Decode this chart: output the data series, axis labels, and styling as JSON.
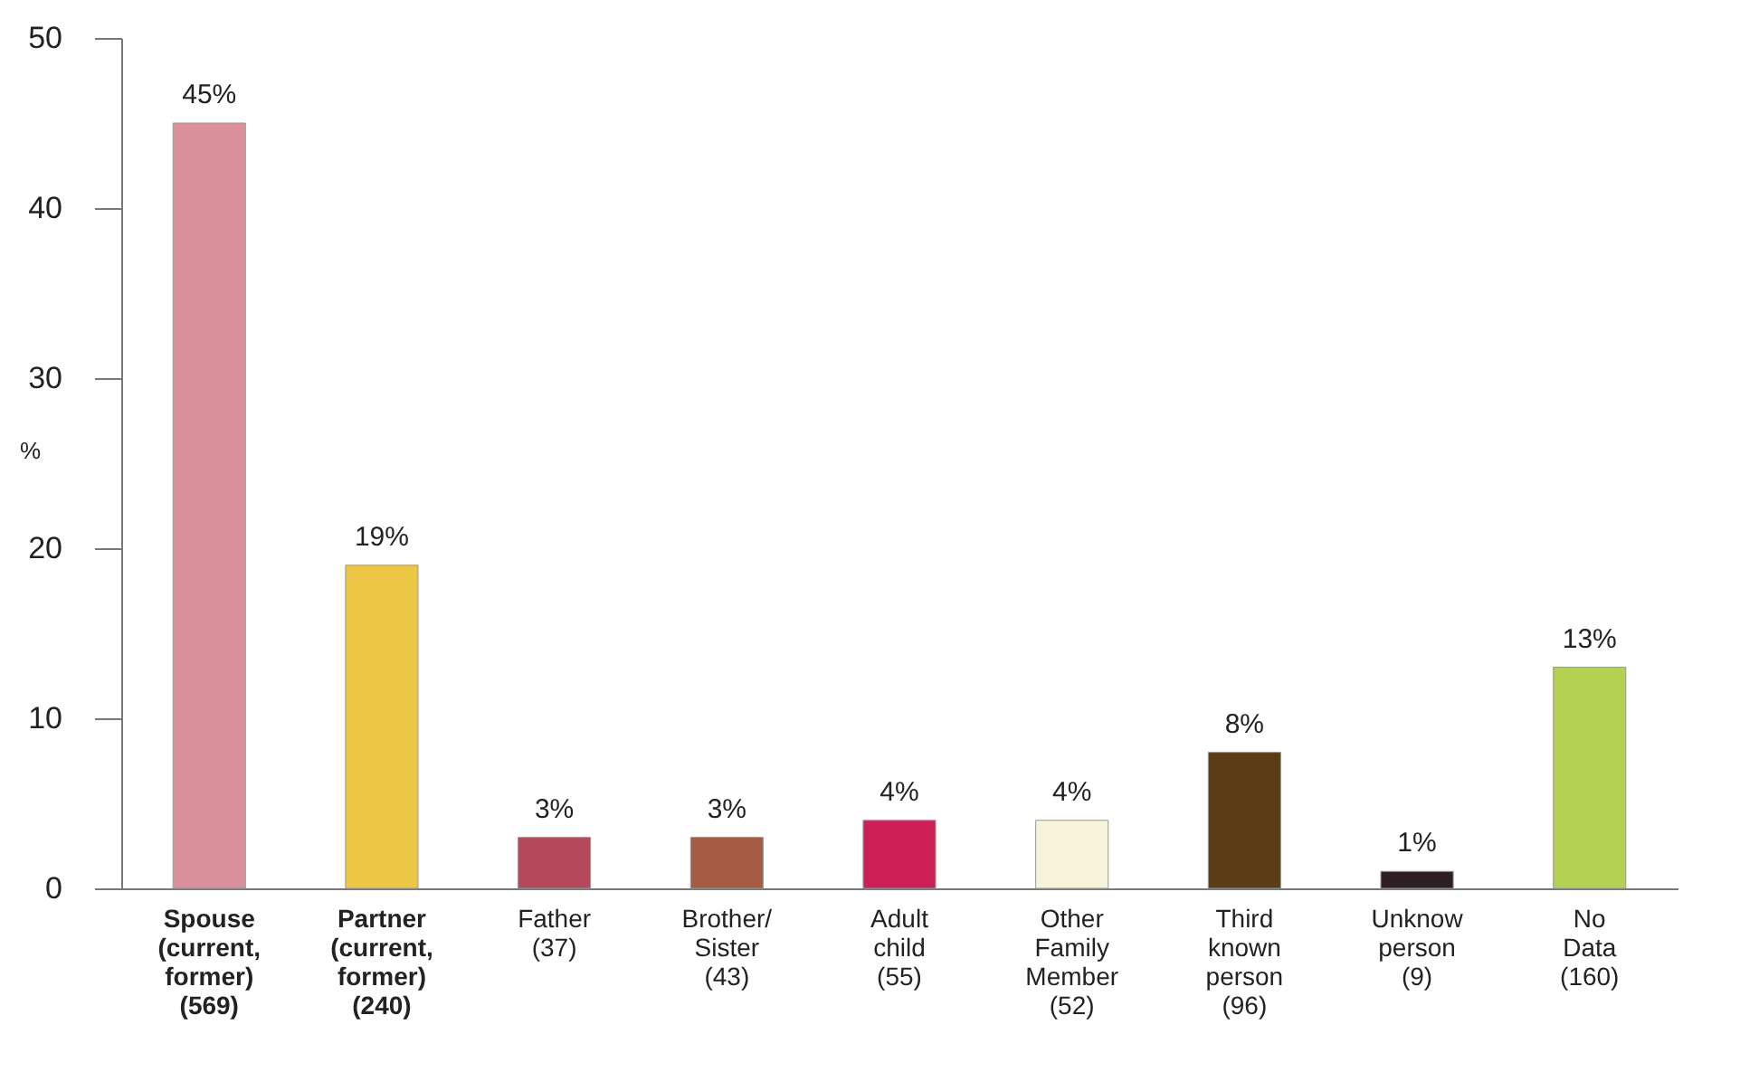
{
  "chart_data": {
    "type": "bar",
    "ylabel": "%",
    "categories": [
      "Spouse (current, former) (569)",
      "Partner (current, former) (240)",
      "Father (37)",
      "Brother/ Sister (43)",
      "Adult child (55)",
      "Other Family Member (52)",
      "Third known person (96)",
      "Unknow person (9)",
      "No Data (160)"
    ],
    "values": [
      45,
      19,
      3,
      3,
      4,
      4,
      8,
      1,
      13
    ],
    "value_labels": [
      "45%",
      "19%",
      "3%",
      "3%",
      "4%",
      "4%",
      "8%",
      "1%",
      "13%"
    ],
    "colors": [
      "#d9909a",
      "#ecc643",
      "#b5485a",
      "#a65c43",
      "#cc1f55",
      "#f5f3d8",
      "#5a3d17",
      "#2d1f24",
      "#b5d152"
    ],
    "ylim": [
      0,
      50
    ],
    "yticks": [
      0,
      10,
      20,
      30,
      40,
      50
    ],
    "grid": false,
    "legend": false
  }
}
